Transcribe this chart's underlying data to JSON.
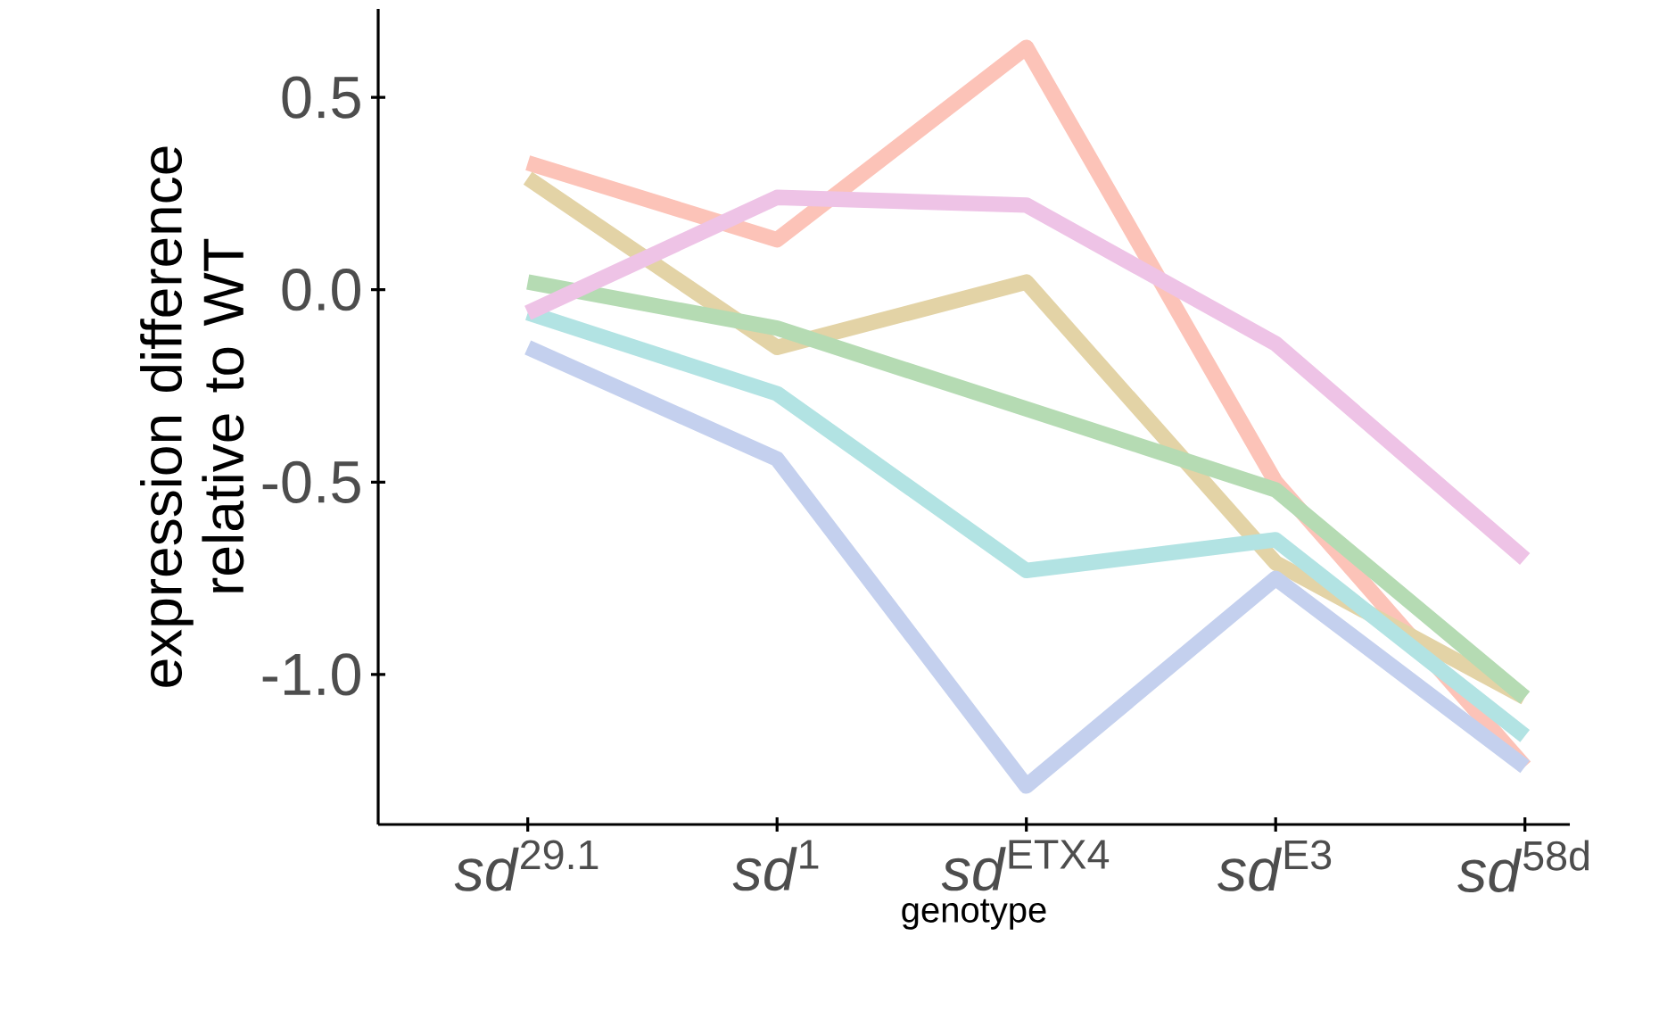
{
  "chart_data": {
    "type": "line",
    "xlabel": "genotype",
    "ylabel": "expression difference relative to WT",
    "categories": [
      "*sd*$^{29.1}$",
      "*sd*$^{1}$",
      "*sd*$^{ETX4}$",
      "*sd*$^{E3}$",
      "*sd*$^{58d}$"
    ],
    "series": [
      {
        "color": "#fcc3b8",
        "values": [
          0.33,
          0.13,
          0.63,
          -0.5,
          -1.24
        ]
      },
      {
        "color": "#e3d3a6",
        "values": [
          0.29,
          -0.15,
          0.02,
          -0.71,
          -1.06
        ]
      },
      {
        "color": "#b5dbb3",
        "values": [
          0.02,
          -0.1,
          -0.31,
          -0.52,
          -1.06
        ]
      },
      {
        "color": "#b2e3e3",
        "values": [
          -0.06,
          -0.27,
          -0.73,
          -0.65,
          -1.16
        ]
      },
      {
        "color": "#c4d0ee",
        "values": [
          -0.15,
          -0.44,
          -1.29,
          -0.75,
          -1.24
        ]
      },
      {
        "color": "#eec3e6",
        "values": [
          -0.06,
          0.24,
          0.22,
          -0.14,
          -0.7
        ]
      }
    ],
    "ylim": [
      -1.39,
      0.73
    ],
    "yticks": [
      {
        "value": 0.5,
        "label": "0.5"
      },
      {
        "value": 0.0,
        "label": "0.0"
      },
      {
        "value": -0.5,
        "label": "-0.5"
      },
      {
        "value": -1.0,
        "label": "-1.0"
      }
    ],
    "grid": false,
    "marker": "none",
    "line_style": "solid"
  }
}
